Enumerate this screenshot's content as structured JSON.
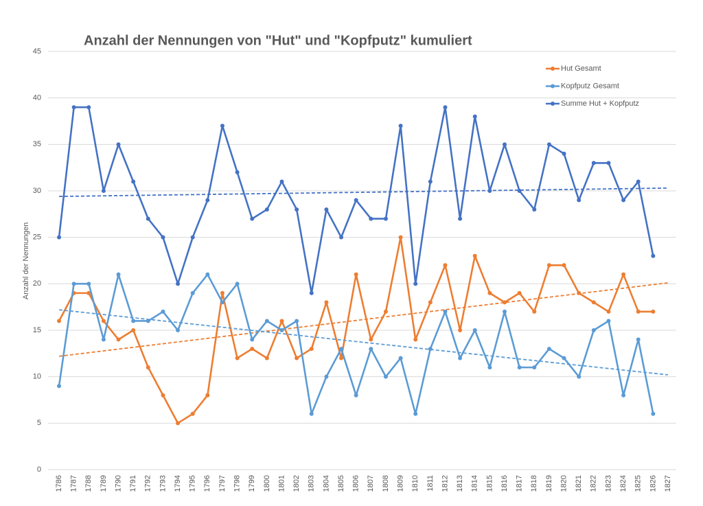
{
  "chart_data": {
    "type": "line",
    "title": "Anzahl der Nennungen von \"Hut\" und \"Kopfputz\" kumuliert",
    "y_label": "Anzahl der Nennungen",
    "categories": [
      "1786",
      "1787",
      "1788",
      "1789",
      "1790",
      "1791",
      "1792",
      "1793",
      "1794",
      "1795",
      "1796",
      "1797",
      "1798",
      "1799",
      "1800",
      "1801",
      "1802",
      "1803",
      "1804",
      "1805",
      "1806",
      "1807",
      "1808",
      "1809",
      "1810",
      "1811",
      "1812",
      "1813",
      "1814",
      "1815",
      "1816",
      "1817",
      "1818",
      "1819",
      "1820",
      "1821",
      "1822",
      "1823",
      "1824",
      "1825",
      "1826",
      "1827"
    ],
    "series": [
      {
        "name": "Hut Gesamt",
        "color": "#ed7d31",
        "trend": [
          12.2,
          20.1
        ],
        "values": [
          16,
          19,
          19,
          16,
          14,
          15,
          11,
          8,
          5,
          6,
          8,
          19,
          12,
          13,
          12,
          16,
          12,
          13,
          18,
          12,
          21,
          14,
          17,
          25,
          14,
          18,
          22,
          15,
          23,
          19,
          18,
          19,
          17,
          22,
          22,
          19,
          18,
          17,
          21,
          17,
          17,
          null
        ]
      },
      {
        "name": "Kopfputz Gesamt",
        "color": "#5b9bd5",
        "trend": [
          17.2,
          10.2
        ],
        "values": [
          9,
          20,
          20,
          14,
          21,
          16,
          16,
          17,
          15,
          19,
          21,
          18,
          20,
          14,
          16,
          15,
          16,
          6,
          10,
          13,
          8,
          13,
          10,
          12,
          6,
          13,
          17,
          12,
          15,
          11,
          17,
          11,
          11,
          13,
          12,
          10,
          15,
          16,
          8,
          14,
          6,
          null
        ]
      },
      {
        "name": "Summe Hut + Kopfputz",
        "color": "#4472c4",
        "trend": [
          29.4,
          30.3
        ],
        "values": [
          25,
          39,
          39,
          30,
          35,
          31,
          27,
          25,
          20,
          25,
          29,
          37,
          32,
          27,
          28,
          31,
          28,
          19,
          28,
          25,
          29,
          27,
          27,
          37,
          20,
          31,
          39,
          27,
          38,
          30,
          35,
          30,
          28,
          35,
          34,
          29,
          33,
          33,
          29,
          31,
          23,
          null
        ]
      }
    ],
    "ylim": [
      0,
      45
    ],
    "yticks": [
      0,
      5,
      10,
      15,
      20,
      25,
      30,
      35,
      40,
      45
    ],
    "grid": true,
    "legend": "top-right"
  }
}
